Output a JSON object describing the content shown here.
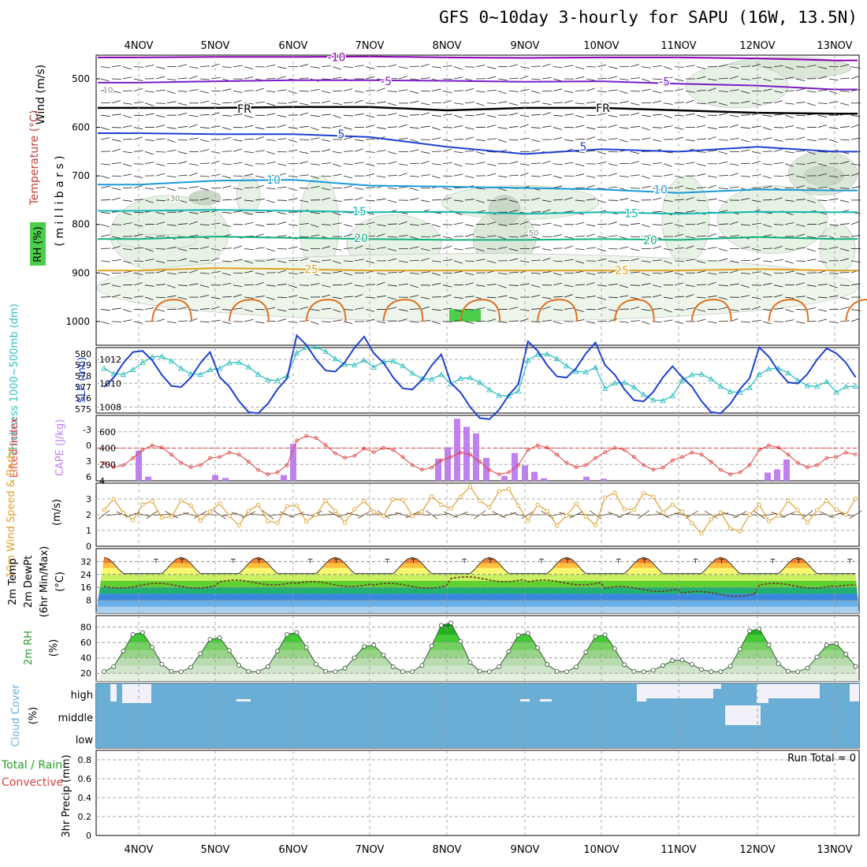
{
  "title": "GFS 0~10day 3-hourly for SAPU (16W, 13.5N)",
  "dates": [
    "4NOV",
    "5NOV",
    "6NOV",
    "7NOV",
    "8NOV",
    "9NOV",
    "10NOV",
    "11NOV",
    "12NOV",
    "13NOV"
  ],
  "colors": {
    "temp_neg10": "#8a00b4",
    "temp_5_upper": "#7a1cc8",
    "temp_FR": "#000000",
    "temp_5": "#1f3fd0",
    "temp_10": "#1a9ad8",
    "temp_15": "#15b7b0",
    "temp_20": "#10b080",
    "temp_25": "#e0a020",
    "slp": "#1f3fd0",
    "thickness": "#30c0c0",
    "lifted": "#e04040",
    "cape": "#bf80f0",
    "wind": "#e0a030",
    "rh": "#2ecc2e",
    "cloud": "#6aaed6"
  },
  "panels": {
    "upper": {
      "ylabels": [
        "Wind (m/s)",
        "Temperature (°C)",
        "RH (%)",
        "( m i l l i b a r s )"
      ],
      "ticks": [
        "500",
        "600",
        "700",
        "800",
        "900",
        "1000"
      ],
      "contour_labels": {
        "neg10": "-10",
        "m5a": "-5",
        "m5b": "-5",
        "fr1": "FR",
        "fr2": "FR",
        "p5a": "5",
        "p5b": "5",
        "p10a": "10",
        "p10b": "10",
        "p15a": "15",
        "p15b": "15",
        "p20a": "20",
        "p20b": "20",
        "p25a": "25",
        "p25b": "25",
        "g10": "10",
        "g30": "30",
        "g50": "50"
      }
    },
    "slp": {
      "ylabels": [
        "Thickness 1000~500mb (dm)",
        "SLP (mb)"
      ],
      "left_ticks": [
        "580",
        "579",
        "578",
        "577",
        "576",
        "575"
      ],
      "right_ticks": [
        "1012",
        "1010",
        "1008"
      ]
    },
    "cape": {
      "ylabels": [
        "Lifted Index",
        "CAPE (J/kg)"
      ],
      "left_ticks": [
        "-3",
        "0",
        "3",
        "6"
      ],
      "right_ticks": [
        "600",
        "400",
        "200",
        "4"
      ]
    },
    "wind10": {
      "ylabels": [
        "10m Wind Speed & Barbs",
        "(m/s)"
      ],
      "ticks": [
        "3",
        "2",
        "1",
        "0"
      ]
    },
    "temp2m": {
      "ylabels": [
        "2m Temp",
        "2m DewPt",
        "(6hr Min/Max)",
        "(°C)"
      ],
      "ticks": [
        "32",
        "24",
        "16",
        "8"
      ]
    },
    "rh2m": {
      "ylabels": [
        "2m RH",
        "(%)"
      ],
      "ticks": [
        "80",
        "60",
        "40",
        "20"
      ]
    },
    "cloud": {
      "ylabels": [
        "Cloud Cover",
        "(%)"
      ],
      "ticks": [
        "high",
        "middle",
        "low"
      ]
    },
    "precip": {
      "ylabels": [
        "Total / Rain",
        "Convective",
        "3hr Precip (mm)"
      ],
      "ticks": [
        "0.8",
        "0.6",
        "0.4",
        "0.2",
        "0"
      ],
      "run_total": "Run Total = 0"
    }
  },
  "chart_data": [
    {
      "type": "line",
      "name": "upper-air temperature contours (mb)",
      "x_labels": [
        "4NOV",
        "5NOV",
        "6NOV",
        "7NOV",
        "8NOV",
        "9NOV",
        "10NOV",
        "11NOV",
        "12NOV",
        "13NOV"
      ],
      "series": [
        {
          "name": "-10",
          "values_mb": [
            456,
            455,
            455,
            454,
            456,
            457,
            456,
            456,
            458,
            462
          ]
        },
        {
          "name": "-5",
          "values_mb": [
            508,
            505,
            503,
            503,
            504,
            506,
            505,
            510,
            514,
            522
          ]
        },
        {
          "name": "FR",
          "values_mb": [
            560,
            560,
            558,
            558,
            565,
            560,
            560,
            565,
            570,
            572
          ]
        },
        {
          "name": "5",
          "values_mb": [
            612,
            614,
            614,
            620,
            640,
            655,
            645,
            650,
            640,
            650
          ]
        },
        {
          "name": "10",
          "values_mb": [
            718,
            710,
            708,
            720,
            722,
            725,
            728,
            735,
            728,
            730
          ]
        },
        {
          "name": "15",
          "values_mb": [
            772,
            770,
            772,
            775,
            774,
            778,
            775,
            778,
            774,
            775
          ]
        },
        {
          "name": "20",
          "values_mb": [
            830,
            825,
            828,
            830,
            832,
            832,
            830,
            832,
            826,
            830
          ]
        },
        {
          "name": "25",
          "values_mb": [
            895,
            890,
            892,
            895,
            895,
            895,
            895,
            895,
            892,
            895
          ]
        }
      ]
    },
    {
      "type": "line",
      "name": "SLP (mb)",
      "ylim": [
        1007.5,
        1013
      ],
      "values": [
        1011.2,
        1009,
        1012.5,
        1011,
        1008.5,
        1012,
        1010,
        1009,
        1011.5,
        1011
      ]
    },
    {
      "type": "line",
      "name": "Thickness 1000~500mb (dm)",
      "ylim": [
        575,
        580.5
      ],
      "values": [
        579,
        578.5,
        579.8,
        578.6,
        577.2,
        579.2,
        576.8,
        577.5,
        578,
        576.5
      ]
    },
    {
      "type": "bar",
      "name": "CAPE (J/kg)",
      "ylim": [
        0,
        800
      ],
      "values": [
        {
          "d": "4NOV",
          "v": 370
        },
        {
          "d": "4NOV",
          "v": 50
        },
        {
          "d": "5NOV",
          "v": 70
        },
        {
          "d": "5NOV",
          "v": 35
        },
        {
          "d": "6NOV",
          "v": 70
        },
        {
          "d": "6NOV",
          "v": 450
        },
        {
          "d": "8NOV",
          "v": 270
        },
        {
          "d": "8NOV",
          "v": 410
        },
        {
          "d": "8NOV",
          "v": 760
        },
        {
          "d": "8NOV",
          "v": 660
        },
        {
          "d": "8NOV",
          "v": 580
        },
        {
          "d": "8NOV",
          "v": 280
        },
        {
          "d": "9NOV",
          "v": 60
        },
        {
          "d": "9NOV",
          "v": 340
        },
        {
          "d": "9NOV",
          "v": 190
        },
        {
          "d": "9NOV",
          "v": 110
        },
        {
          "d": "9NOV",
          "v": 30
        },
        {
          "d": "10NOV",
          "v": 50
        },
        {
          "d": "10NOV",
          "v": 25
        },
        {
          "d": "12NOV",
          "v": 100
        },
        {
          "d": "12NOV",
          "v": 140
        },
        {
          "d": "12NOV",
          "v": 260
        }
      ]
    },
    {
      "type": "line",
      "name": "Lifted Index",
      "ylim": [
        -4.5,
        6
      ],
      "values": [
        1,
        -0.5,
        3,
        0.5,
        -0.5,
        1,
        0.5,
        -0.5,
        1,
        -0.5
      ]
    },
    {
      "type": "line",
      "name": "10m Wind Speed (m/s)",
      "ylim": [
        0,
        4
      ],
      "values": [
        2.3,
        2.0,
        2.2,
        2.5,
        3.1,
        2.0,
        2.8,
        1.5,
        2.2,
        2.6
      ]
    },
    {
      "type": "line",
      "name": "2m Temp (°C)",
      "ylim": [
        0,
        40
      ],
      "max_values": [
        34,
        34,
        34,
        34,
        34,
        34,
        34,
        34,
        34,
        34
      ],
      "min_values": [
        26,
        26,
        26,
        26,
        26,
        26,
        26,
        26,
        26,
        26
      ]
    },
    {
      "type": "line",
      "name": "2m DewPt (°C)",
      "ylim": [
        0,
        40
      ],
      "values": [
        17,
        19,
        18,
        17,
        21,
        19,
        15,
        12,
        17,
        16
      ]
    },
    {
      "type": "area",
      "name": "2m RH (%)",
      "ylim": [
        10,
        95
      ],
      "peaks": [
        75,
        68,
        75,
        58,
        88,
        74,
        72,
        38,
        80,
        60
      ]
    },
    {
      "type": "area",
      "name": "Cloud Cover (%)",
      "levels": [
        "high",
        "middle",
        "low"
      ],
      "mostly_clear": true
    },
    {
      "type": "bar",
      "name": "3hr Precip (mm)",
      "ylim": [
        0,
        0.9
      ],
      "values": []
    }
  ]
}
